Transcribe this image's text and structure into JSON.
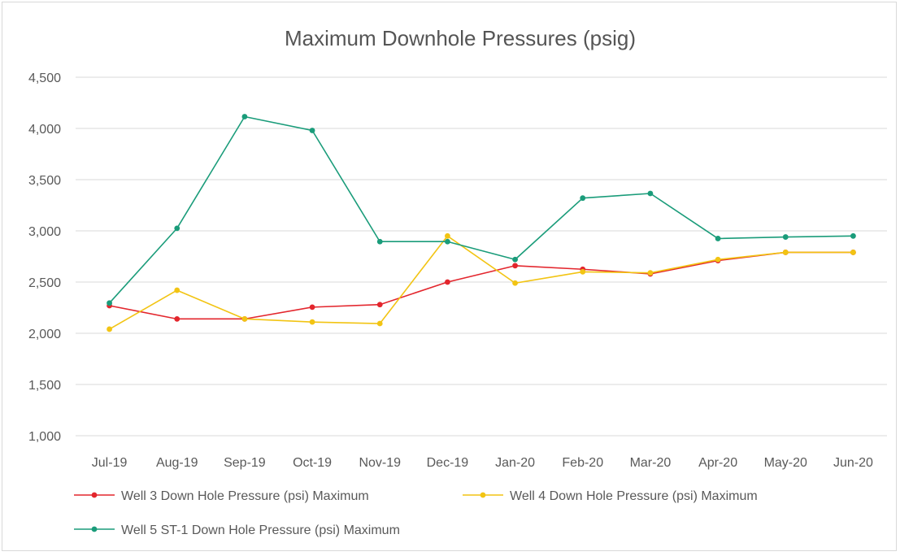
{
  "chart_data": {
    "type": "line",
    "title": "Maximum Downhole Pressures (psig)",
    "xlabel": "",
    "ylabel": "",
    "categories": [
      "Jul-19",
      "Aug-19",
      "Sep-19",
      "Oct-19",
      "Nov-19",
      "Dec-19",
      "Jan-20",
      "Feb-20",
      "Mar-20",
      "Apr-20",
      "May-20",
      "Jun-20"
    ],
    "ylim": [
      1000,
      4500
    ],
    "yticks": [
      1000,
      1500,
      2000,
      2500,
      3000,
      3500,
      4000,
      4500
    ],
    "ytick_labels": [
      "1,000",
      "1,500",
      "2,000",
      "2,500",
      "3,000",
      "3,500",
      "4,000",
      "4,500"
    ],
    "grid": true,
    "legend_position": "bottom",
    "series": [
      {
        "name": "Well 3 Down Hole Pressure (psi) Maximum",
        "color": "#e3262d",
        "values": [
          2270,
          2140,
          2140,
          2255,
          2280,
          2500,
          2660,
          2625,
          2580,
          2710,
          2790,
          2790
        ]
      },
      {
        "name": "Well 4 Down Hole Pressure (psi) Maximum",
        "color": "#f2c413",
        "values": [
          2040,
          2420,
          2140,
          2110,
          2095,
          2950,
          2490,
          2600,
          2590,
          2720,
          2790,
          2790
        ]
      },
      {
        "name": "Well 5 ST-1 Down Hole Pressure (psi) Maximum",
        "color": "#1a9c7a",
        "values": [
          2295,
          3025,
          4115,
          3980,
          2895,
          2895,
          2720,
          3320,
          3365,
          2925,
          2940,
          2950
        ]
      }
    ]
  }
}
